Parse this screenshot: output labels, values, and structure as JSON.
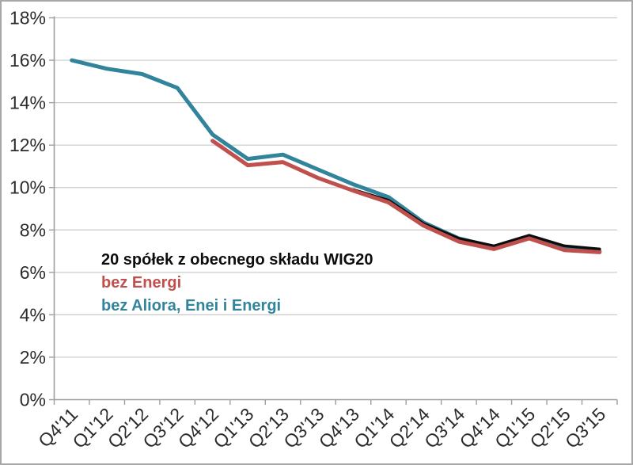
{
  "chart_data": {
    "type": "line",
    "categories": [
      "Q4'11",
      "Q1'12",
      "Q2'12",
      "Q3'12",
      "Q4'12",
      "Q1'13",
      "Q2'13",
      "Q3'13",
      "Q4'13",
      "Q1'14",
      "Q2'14",
      "Q3'14",
      "Q4'14",
      "Q1'15",
      "Q2'15",
      "Q3'15"
    ],
    "yticks": [
      "0%",
      "2%",
      "4%",
      "6%",
      "8%",
      "10%",
      "12%",
      "14%",
      "16%",
      "18%"
    ],
    "ylim": [
      0,
      18
    ],
    "ytick_step": 2,
    "grid": true,
    "legend_position": "inside-left-middle",
    "series": [
      {
        "name": "20 spółek z obecnego składu WIG20",
        "color": "#0d0d0d",
        "width": 3.5,
        "values": [
          null,
          null,
          null,
          null,
          null,
          null,
          null,
          null,
          9.9,
          9.4,
          8.3,
          7.6,
          7.25,
          7.75,
          7.25,
          7.1
        ]
      },
      {
        "name": "bez Energi",
        "color": "#c0504d",
        "width": 5,
        "values": [
          null,
          null,
          null,
          null,
          12.2,
          11.05,
          11.2,
          10.45,
          9.85,
          9.3,
          8.2,
          7.45,
          7.1,
          7.6,
          7.05,
          6.95
        ]
      },
      {
        "name": "bez Aliora, Enei i Energi",
        "color": "#31849b",
        "width": 5,
        "values": [
          16.0,
          15.6,
          15.35,
          14.7,
          12.5,
          11.35,
          11.55,
          10.85,
          10.15,
          9.55,
          8.35,
          7.6,
          7.2,
          7.7,
          7.15,
          7.0
        ]
      }
    ],
    "draw_order": [
      2,
      0,
      1
    ]
  },
  "colors": {
    "grid": "#c9c9c9",
    "axis": "#9e9e9e",
    "tick_label": "#2b2b2b",
    "frame_border": "#a7a7a7",
    "background": "#ffffff"
  }
}
